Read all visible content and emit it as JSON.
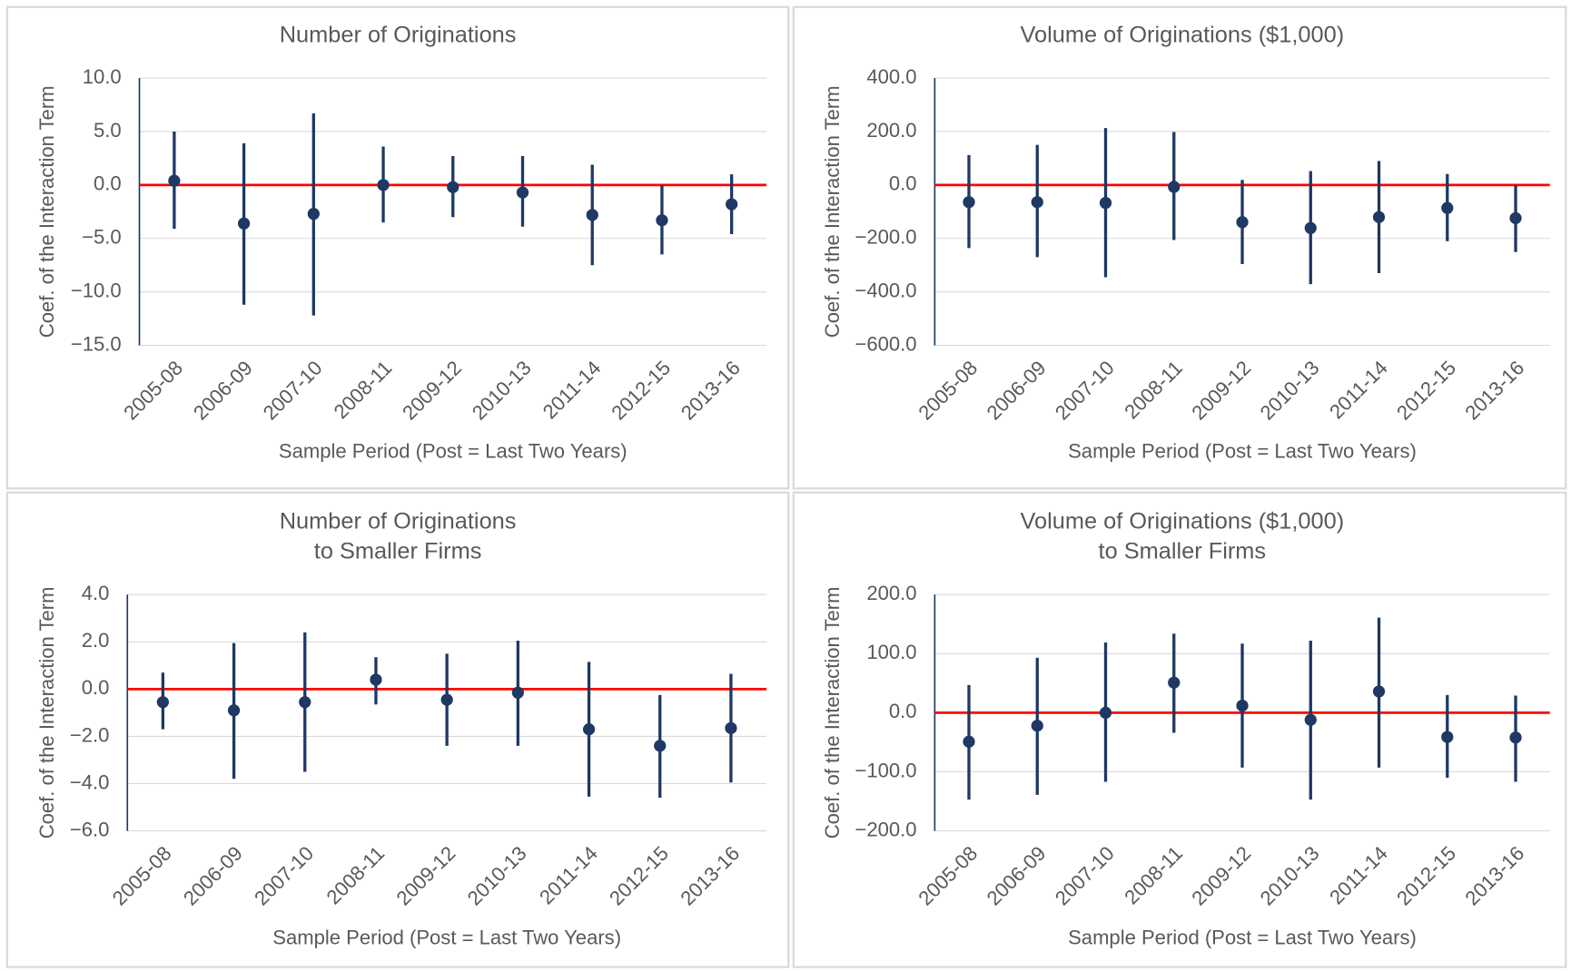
{
  "chart_data": [
    {
      "type": "errorbar",
      "title": [
        "Number of Originations"
      ],
      "x_label": "Sample Period (Post = Last Two Years)",
      "y_label": "Coef. of the Interaction Term",
      "categories": [
        "2005-08",
        "2006-09",
        "2007-10",
        "2008-11",
        "2009-12",
        "2010-13",
        "2011-14",
        "2012-15",
        "2013-16"
      ],
      "values": [
        0.4,
        -3.6,
        -2.7,
        0.0,
        -0.2,
        -0.7,
        -2.8,
        -3.3,
        -1.8
      ],
      "lower": [
        -4.1,
        -11.2,
        -12.2,
        -3.5,
        -3.0,
        -3.9,
        -7.5,
        -6.5,
        -4.6
      ],
      "upper": [
        5.0,
        3.9,
        6.7,
        3.6,
        2.7,
        2.7,
        1.9,
        0.0,
        1.0
      ],
      "color": "#1f3864",
      "reference_line": 0,
      "reference_color": "#ff0000",
      "ylim": [
        -15,
        10
      ],
      "yticks": [
        {
          "value": -15,
          "label": "−15.0"
        },
        {
          "value": -10,
          "label": "−10.0"
        },
        {
          "value": -5,
          "label": "−5.0"
        },
        {
          "value": 0,
          "label": "0.0"
        },
        {
          "value": 5,
          "label": "5.0"
        },
        {
          "value": 10,
          "label": "10.0"
        }
      ],
      "grid": true
    },
    {
      "type": "errorbar",
      "title": [
        "Volume of Originations ($1,000)"
      ],
      "x_label": "Sample Period (Post = Last Two Years)",
      "y_label": "Coef. of the Interaction Term",
      "categories": [
        "2005-08",
        "2006-09",
        "2007-10",
        "2008-11",
        "2009-12",
        "2010-13",
        "2011-14",
        "2012-15",
        "2013-16"
      ],
      "values": [
        -64,
        -64,
        -67,
        -7,
        -139,
        -161,
        -120,
        -86,
        -124
      ],
      "lower": [
        -236,
        -270,
        -345,
        -206,
        -296,
        -371,
        -330,
        -210,
        -251
      ],
      "upper": [
        112,
        150,
        213,
        198,
        19,
        52,
        90,
        41,
        0
      ],
      "color": "#1f3864",
      "reference_line": 0,
      "reference_color": "#ff0000",
      "ylim": [
        -600,
        400
      ],
      "yticks": [
        {
          "value": -600,
          "label": "−600.0"
        },
        {
          "value": -400,
          "label": "−400.0"
        },
        {
          "value": -200,
          "label": "−200.0"
        },
        {
          "value": 0,
          "label": "0.0"
        },
        {
          "value": 200,
          "label": "200.0"
        },
        {
          "value": 400,
          "label": "400.0"
        }
      ],
      "grid": true
    },
    {
      "type": "errorbar",
      "title": [
        "Number of Originations",
        "to Smaller Firms"
      ],
      "x_label": "Sample Period (Post = Last Two Years)",
      "y_label": "Coef. of the Interaction Term",
      "categories": [
        "2005-08",
        "2006-09",
        "2007-10",
        "2008-11",
        "2009-12",
        "2010-13",
        "2011-14",
        "2012-15",
        "2013-16"
      ],
      "values": [
        -0.55,
        -0.9,
        -0.55,
        0.4,
        -0.45,
        -0.15,
        -1.7,
        -2.4,
        -1.65
      ],
      "lower": [
        -1.7,
        -3.8,
        -3.5,
        -0.65,
        -2.4,
        -2.4,
        -4.55,
        -4.6,
        -3.95
      ],
      "upper": [
        0.7,
        1.95,
        2.4,
        1.35,
        1.5,
        2.05,
        1.15,
        -0.25,
        0.65
      ],
      "color": "#1f3864",
      "reference_line": 0,
      "reference_color": "#ff0000",
      "ylim": [
        -6,
        4
      ],
      "yticks": [
        {
          "value": -6,
          "label": "−6.0"
        },
        {
          "value": -4,
          "label": "−4.0"
        },
        {
          "value": -2,
          "label": "−2.0"
        },
        {
          "value": 0,
          "label": "0.0"
        },
        {
          "value": 2,
          "label": "2.0"
        },
        {
          "value": 4,
          "label": "4.0"
        }
      ],
      "grid": true
    },
    {
      "type": "errorbar",
      "title": [
        "Volume of Originations ($1,000)",
        "to Smaller Firms"
      ],
      "x_label": "Sample Period (Post = Last Two Years)",
      "y_label": "Coef. of the Interaction Term",
      "categories": [
        "2005-08",
        "2006-09",
        "2007-10",
        "2008-11",
        "2009-12",
        "2010-13",
        "2011-14",
        "2012-15",
        "2013-16"
      ],
      "values": [
        -49,
        -22,
        0,
        51,
        12,
        -12,
        36,
        -41,
        -42
      ],
      "lower": [
        -147,
        -139,
        -117,
        -34,
        -93,
        -147,
        -93,
        -110,
        -117
      ],
      "upper": [
        47,
        93,
        119,
        134,
        117,
        122,
        161,
        30,
        29
      ],
      "color": "#1f3864",
      "reference_line": 0,
      "reference_color": "#ff0000",
      "ylim": [
        -200,
        200
      ],
      "yticks": [
        {
          "value": -200,
          "label": "−200.0"
        },
        {
          "value": -100,
          "label": "−100.0"
        },
        {
          "value": 0,
          "label": "0.0"
        },
        {
          "value": 100,
          "label": "100.0"
        },
        {
          "value": 200,
          "label": "200.0"
        }
      ],
      "grid": true
    }
  ]
}
